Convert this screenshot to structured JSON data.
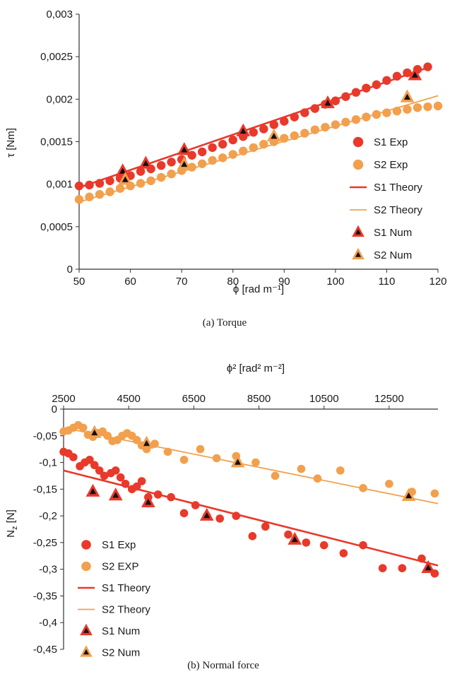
{
  "colors": {
    "s1": "#e8392b",
    "s2": "#f2a04e",
    "s1_dark": "#d63a2a",
    "s2_dark": "#e9963f",
    "marker_inner": "#111111",
    "axis": "#333333"
  },
  "chart_data": [
    {
      "type": "scatter",
      "caption": "(a)  Torque",
      "xlabel": "ϕ [rad m⁻¹]",
      "ylabel": "τ [Nm]",
      "xlim": [
        50,
        120
      ],
      "ylim": [
        0,
        0.003
      ],
      "xticks": [
        50,
        60,
        70,
        80,
        90,
        100,
        110,
        120
      ],
      "xtick_labels": [
        "50",
        "60",
        "70",
        "80",
        "90",
        "100",
        "110",
        "120"
      ],
      "yticks": [
        0,
        0.0005,
        0.001,
        0.0015,
        0.002,
        0.0025,
        0.003
      ],
      "ytick_labels": [
        "0",
        "0,0005",
        "0,001",
        "0,0015",
        "0,002",
        "0,0025",
        "0,003"
      ],
      "grid": false,
      "legend_position": "right",
      "series": [
        {
          "name": "S1 Exp",
          "kind": "scatter",
          "color": "s1",
          "x": [
            50,
            52,
            54,
            56,
            58,
            60,
            62,
            64,
            66,
            68,
            70,
            72,
            74,
            76,
            78,
            80,
            82,
            84,
            86,
            88,
            90,
            92,
            94,
            96,
            98,
            100,
            102,
            104,
            106,
            108,
            110,
            112,
            114,
            116,
            118
          ],
          "y": [
            0.00098,
            0.00099,
            0.00101,
            0.00104,
            0.00107,
            0.0011,
            0.00115,
            0.00118,
            0.00122,
            0.00126,
            0.00129,
            0.00134,
            0.00138,
            0.00143,
            0.00147,
            0.00152,
            0.00156,
            0.00161,
            0.00165,
            0.0017,
            0.00174,
            0.00179,
            0.00184,
            0.00189,
            0.00194,
            0.00198,
            0.00203,
            0.00208,
            0.00213,
            0.00217,
            0.00222,
            0.00227,
            0.00231,
            0.00235,
            0.00238
          ]
        },
        {
          "name": "S2 Exp",
          "kind": "scatter",
          "color": "s2",
          "x": [
            50,
            52,
            54,
            56,
            58,
            60,
            62,
            64,
            66,
            68,
            70,
            72,
            74,
            76,
            78,
            80,
            82,
            84,
            86,
            88,
            90,
            92,
            94,
            96,
            98,
            100,
            102,
            104,
            106,
            108,
            110,
            112,
            114,
            116,
            118,
            120
          ],
          "y": [
            0.00082,
            0.00085,
            0.00088,
            0.00091,
            0.00095,
            0.00098,
            0.00101,
            0.00104,
            0.00108,
            0.00112,
            0.00116,
            0.0012,
            0.00124,
            0.00128,
            0.00131,
            0.00135,
            0.00139,
            0.00143,
            0.00147,
            0.0015,
            0.00154,
            0.00157,
            0.0016,
            0.00164,
            0.00167,
            0.0017,
            0.00173,
            0.00176,
            0.00179,
            0.00182,
            0.00184,
            0.00186,
            0.00188,
            0.0019,
            0.00191,
            0.00192
          ]
        },
        {
          "name": "S1 Theory",
          "kind": "line",
          "color": "s1",
          "x": [
            50,
            118
          ],
          "y": [
            0.00096,
            0.00237
          ]
        },
        {
          "name": "S2 Theory",
          "kind": "line",
          "color": "s2",
          "x": [
            50,
            120
          ],
          "y": [
            0.00079,
            0.00204
          ]
        },
        {
          "name": "S1 Num",
          "kind": "triangle",
          "color": "s1",
          "x": [
            58.5,
            63,
            70.5,
            82,
            98.5,
            115.5
          ],
          "y": [
            0.00115,
            0.00124,
            0.0014,
            0.00162,
            0.00195,
            0.00228
          ]
        },
        {
          "name": "S2 Num",
          "kind": "triangle",
          "color": "s2",
          "x": [
            59,
            70.5,
            88,
            114
          ],
          "y": [
            0.00105,
            0.00123,
            0.00156,
            0.00202
          ]
        }
      ]
    },
    {
      "type": "scatter",
      "caption": "(b)  Normal force",
      "xlabel": "ϕ² [rad² m⁻²]",
      "ylabel": "Nz [N]",
      "ylabel_main": "N",
      "ylabel_sub": "z",
      "ylabel_unit": " [N]",
      "xlim": [
        2500,
        14000
      ],
      "ylim": [
        -0.45,
        0
      ],
      "xticks": [
        2500,
        4500,
        6500,
        8500,
        10500,
        12500
      ],
      "xtick_labels": [
        "2500",
        "4500",
        "6500",
        "8500",
        "10500",
        "12500"
      ],
      "yticks": [
        0,
        -0.05,
        -0.1,
        -0.15,
        -0.2,
        -0.25,
        -0.3,
        -0.35,
        -0.4,
        -0.45
      ],
      "ytick_labels": [
        "0",
        "-0,05",
        "-0,1",
        "-0,15",
        "-0,2",
        "-0,25",
        "-0,3",
        "-0,35",
        "-0,4",
        "-0,45"
      ],
      "x_axis_position": "top",
      "grid": false,
      "legend_position": "left",
      "series": [
        {
          "name": "S1 Exp",
          "kind": "scatter",
          "color": "s1",
          "x": [
            2500,
            2650,
            2800,
            3000,
            3150,
            3300,
            3450,
            3600,
            3750,
            3950,
            4100,
            4250,
            4400,
            4600,
            4750,
            4900,
            5100,
            5400,
            5800,
            6200,
            6550,
            6900,
            7300,
            7800,
            8300,
            8700,
            9400,
            9950,
            10500,
            11100,
            11700,
            12300,
            12900,
            13500,
            13900
          ],
          "y": [
            -0.08,
            -0.083,
            -0.09,
            -0.107,
            -0.1,
            -0.095,
            -0.105,
            -0.115,
            -0.125,
            -0.12,
            -0.115,
            -0.128,
            -0.14,
            -0.15,
            -0.145,
            -0.135,
            -0.165,
            -0.16,
            -0.165,
            -0.195,
            -0.18,
            -0.2,
            -0.205,
            -0.2,
            -0.238,
            -0.22,
            -0.235,
            -0.25,
            -0.255,
            -0.27,
            -0.255,
            -0.298,
            -0.298,
            -0.28,
            -0.308
          ]
        },
        {
          "name": "S2 EXP",
          "kind": "scatter",
          "color": "s2",
          "x": [
            2500,
            2650,
            2800,
            2950,
            3100,
            3250,
            3400,
            3550,
            3700,
            3850,
            4000,
            4150,
            4300,
            4450,
            4600,
            4750,
            4900,
            5050,
            5300,
            5700,
            6200,
            6700,
            7200,
            7800,
            8400,
            9000,
            9800,
            10300,
            11000,
            11700,
            12500,
            13200,
            13900
          ],
          "y": [
            -0.042,
            -0.04,
            -0.035,
            -0.03,
            -0.035,
            -0.048,
            -0.052,
            -0.045,
            -0.042,
            -0.05,
            -0.06,
            -0.058,
            -0.05,
            -0.045,
            -0.05,
            -0.058,
            -0.068,
            -0.075,
            -0.065,
            -0.08,
            -0.095,
            -0.075,
            -0.092,
            -0.088,
            -0.1,
            -0.125,
            -0.112,
            -0.13,
            -0.115,
            -0.148,
            -0.14,
            -0.155,
            -0.158
          ]
        },
        {
          "name": "S1 Theory",
          "kind": "line",
          "color": "s1",
          "x": [
            2500,
            14000
          ],
          "y": [
            -0.115,
            -0.293
          ]
        },
        {
          "name": "S2 Theory",
          "kind": "line",
          "color": "s2",
          "x": [
            2500,
            14000
          ],
          "y": [
            -0.035,
            -0.177
          ]
        },
        {
          "name": "S1 Num",
          "kind": "triangle",
          "color": "s1",
          "x": [
            3400,
            4100,
            5100,
            6900,
            9600,
            13700
          ],
          "y": [
            -0.155,
            -0.162,
            -0.175,
            -0.2,
            -0.245,
            -0.298
          ]
        },
        {
          "name": "S2 Num",
          "kind": "triangle",
          "color": "s2",
          "x": [
            3450,
            5050,
            7850,
            13100
          ],
          "y": [
            -0.045,
            -0.065,
            -0.1,
            -0.163
          ]
        }
      ]
    }
  ]
}
